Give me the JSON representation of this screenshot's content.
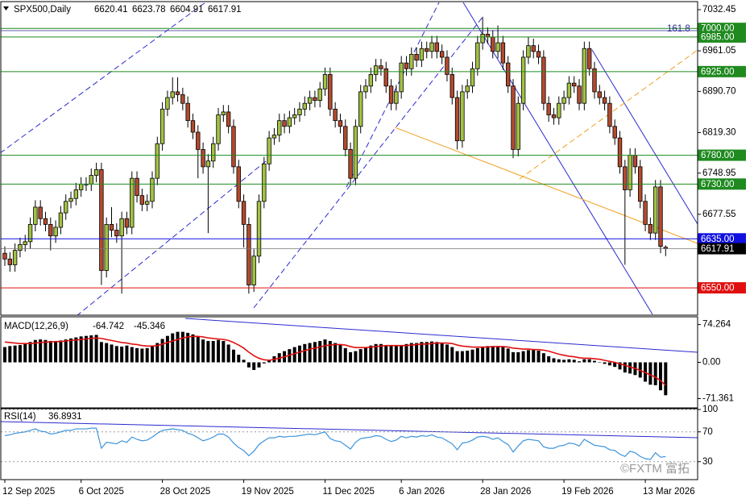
{
  "chart_data": [
    {
      "type": "candlestick",
      "title": "SPX500,Daily",
      "annotation": "161.8",
      "up_color": "#a2c244",
      "down_color": "#b34a2e",
      "ylim": [
        6504,
        7045
      ],
      "yticks": [
        7032.45,
        6961.05,
        {
          "value": 6890.7,
          "label": "6890.70"
        },
        {
          "value": 6819.3,
          "label": "6819.30"
        },
        6748.95,
        6677.55
      ],
      "levels": [
        {
          "value": 7000,
          "label": "7000.00",
          "color": "#1f8a1f"
        },
        {
          "value": 6985,
          "label": "6985.00",
          "color": "#1f8a1f"
        },
        {
          "value": 6925,
          "label": "6925.00",
          "color": "#1f8a1f"
        },
        {
          "value": 6780,
          "label": "6780.00",
          "color": "#1f8a1f"
        },
        {
          "value": 6730,
          "label": "6730.00",
          "color": "#1f8a1f"
        },
        {
          "value": 6635,
          "label": "6635.00",
          "color": "#1010e0"
        },
        {
          "value": 6550,
          "label": "6550.00",
          "color": "#e01010"
        }
      ],
      "categories": [
        "12 Sep 2025",
        null,
        null,
        null,
        null,
        null,
        null,
        null,
        null,
        null,
        null,
        null,
        null,
        null,
        null,
        "6 Oct 2025",
        null,
        null,
        null,
        null,
        null,
        null,
        null,
        null,
        null,
        null,
        null,
        null,
        null,
        null,
        null,
        "28 Oct 2025",
        null,
        null,
        null,
        null,
        null,
        null,
        null,
        null,
        null,
        null,
        null,
        null,
        null,
        null,
        null,
        "19 Nov 2025",
        null,
        null,
        null,
        null,
        null,
        null,
        null,
        null,
        null,
        null,
        null,
        null,
        null,
        null,
        null,
        "11 Dec 2025",
        null,
        null,
        null,
        null,
        null,
        null,
        null,
        null,
        null,
        null,
        null,
        null,
        null,
        null,
        "6 Jan 2026",
        null,
        null,
        null,
        null,
        null,
        null,
        null,
        null,
        null,
        null,
        null,
        null,
        null,
        null,
        null,
        "28 Jan 2026",
        null,
        null,
        null,
        null,
        null,
        null,
        null,
        null,
        null,
        null,
        null,
        null,
        null,
        null,
        null,
        "19 Feb 2026",
        null,
        null,
        null,
        null,
        null,
        null,
        null,
        null,
        null,
        null,
        null,
        null,
        null,
        null,
        null,
        "13 Mar 2026",
        null,
        null,
        null,
        null
      ],
      "open": [
        6610,
        6600,
        6590,
        6615,
        6625,
        6630,
        6660,
        6690,
        6670,
        6660,
        6640,
        6655,
        6680,
        6700,
        6705,
        6720,
        6730,
        6730,
        6745,
        6755,
        6580,
        6660,
        6650,
        6640,
        6670,
        6655,
        6740,
        6710,
        6695,
        6700,
        6740,
        6800,
        6860,
        6880,
        6890,
        6885,
        6870,
        6840,
        6820,
        6790,
        6760,
        6770,
        6800,
        6850,
        6855,
        6830,
        6760,
        6700,
        6660,
        6555,
        6605,
        6700,
        6765,
        6810,
        6815,
        6840,
        6830,
        6845,
        6850,
        6860,
        6870,
        6880,
        6875,
        6895,
        6920,
        6860,
        6840,
        6830,
        6790,
        6740,
        6830,
        6890,
        6900,
        6920,
        6935,
        6930,
        6900,
        6870,
        6890,
        6940,
        6930,
        6955,
        6945,
        6965,
        6960,
        6975,
        6960,
        6950,
        6920,
        6880,
        6805,
        6890,
        6900,
        6930,
        6975,
        6990,
        6985,
        6960,
        6975,
        6940,
        6900,
        6790,
        6870,
        6950,
        6970,
        6960,
        6950,
        6870,
        6850,
        6845,
        6870,
        6880,
        6905,
        6900,
        6870,
        6965,
        6930,
        6890,
        6880,
        6870,
        6830,
        6810,
        6760,
        6720,
        6780,
        6760,
        6700,
        6660,
        6645,
        6725,
        6620.41
      ],
      "high": [
        6622,
        6612,
        6627,
        6637,
        6642,
        6672,
        6702,
        6702,
        6682,
        6672,
        6667,
        6692,
        6712,
        6717,
        6732,
        6742,
        6742,
        6757,
        6767,
        6767,
        6672,
        6690,
        6662,
        6682,
        6682,
        6752,
        6752,
        6722,
        6712,
        6752,
        6812,
        6872,
        6892,
        6915,
        6915,
        6897,
        6882,
        6852,
        6832,
        6802,
        6782,
        6812,
        6862,
        6867,
        6867,
        6842,
        6772,
        6712,
        6672,
        6617,
        6712,
        6777,
        6822,
        6827,
        6852,
        6852,
        6857,
        6862,
        6872,
        6882,
        6892,
        6892,
        6907,
        6932,
        6932,
        6872,
        6852,
        6842,
        6802,
        6842,
        6902,
        6912,
        6932,
        6947,
        6947,
        6942,
        6912,
        6902,
        6952,
        6952,
        6967,
        6967,
        6977,
        6977,
        6987,
        6987,
        6972,
        6962,
        6932,
        6892,
        6902,
        6912,
        6942,
        6987,
        7020,
        7002,
        6997,
        7005,
        6987,
        6952,
        6912,
        6882,
        6962,
        6985,
        6982,
        6972,
        6962,
        6882,
        6862,
        6882,
        6892,
        6917,
        6917,
        6912,
        6977,
        6977,
        6942,
        6902,
        6892,
        6882,
        6842,
        6822,
        6772,
        6792,
        6792,
        6772,
        6712,
        6672,
        6737,
        6737,
        6623.78
      ],
      "low": [
        6588,
        6578,
        6578,
        6603,
        6613,
        6618,
        6648,
        6658,
        6648,
        6615,
        6628,
        6643,
        6668,
        6688,
        6693,
        6708,
        6718,
        6718,
        6733,
        6555,
        6568,
        6638,
        6628,
        6540,
        6643,
        6643,
        6698,
        6683,
        6683,
        6688,
        6728,
        6788,
        6848,
        6868,
        6873,
        6858,
        6828,
        6808,
        6740,
        6748,
        6645,
        6758,
        6788,
        6838,
        6818,
        6748,
        6688,
        6620,
        6540,
        6543,
        6593,
        6688,
        6753,
        6798,
        6803,
        6818,
        6818,
        6833,
        6838,
        6848,
        6858,
        6863,
        6863,
        6883,
        6848,
        6828,
        6818,
        6778,
        6728,
        6728,
        6818,
        6878,
        6888,
        6908,
        6918,
        6888,
        6858,
        6858,
        6878,
        6918,
        6918,
        6933,
        6933,
        6948,
        6948,
        6948,
        6938,
        6908,
        6868,
        6790,
        6793,
        6878,
        6888,
        6918,
        6963,
        6973,
        6948,
        6948,
        6928,
        6888,
        6775,
        6778,
        6858,
        6938,
        6948,
        6938,
        6858,
        6838,
        6833,
        6833,
        6858,
        6868,
        6888,
        6858,
        6858,
        6918,
        6878,
        6868,
        6858,
        6818,
        6798,
        6748,
        6590,
        6708,
        6748,
        6688,
        6648,
        6633,
        6633,
        6610,
        6604.91
      ],
      "close": [
        6600,
        6590,
        6615,
        6625,
        6630,
        6660,
        6690,
        6670,
        6660,
        6640,
        6655,
        6680,
        6700,
        6705,
        6720,
        6730,
        6730,
        6745,
        6755,
        6580,
        6660,
        6650,
        6640,
        6670,
        6655,
        6740,
        6710,
        6695,
        6700,
        6740,
        6800,
        6860,
        6880,
        6890,
        6885,
        6870,
        6840,
        6820,
        6790,
        6760,
        6770,
        6800,
        6850,
        6855,
        6830,
        6760,
        6700,
        6660,
        6555,
        6605,
        6700,
        6765,
        6810,
        6815,
        6840,
        6830,
        6845,
        6850,
        6860,
        6870,
        6880,
        6875,
        6895,
        6920,
        6860,
        6840,
        6830,
        6790,
        6740,
        6830,
        6890,
        6900,
        6920,
        6935,
        6930,
        6900,
        6870,
        6890,
        6940,
        6930,
        6955,
        6945,
        6965,
        6960,
        6975,
        6960,
        6950,
        6920,
        6880,
        6805,
        6890,
        6900,
        6930,
        6975,
        6990,
        6985,
        6960,
        6975,
        6940,
        6900,
        6790,
        6870,
        6950,
        6970,
        6960,
        6950,
        6870,
        6850,
        6845,
        6870,
        6880,
        6905,
        6900,
        6870,
        6965,
        6930,
        6890,
        6880,
        6870,
        6830,
        6810,
        6760,
        6720,
        6780,
        6760,
        6700,
        6660,
        6645,
        6725,
        6622,
        6617.91
      ]
    },
    {
      "type": "macd",
      "title": "MACD(12,26,9)",
      "ylim": [
        -88,
        88
      ],
      "yticks": [
        74.264,
        {
          "value": 0,
          "label": "0.00"
        },
        -71.361
      ],
      "histogram": {
        "color": "#000000",
        "values": [
          30,
          32,
          33,
          34,
          36,
          40,
          44,
          45,
          44,
          42,
          42,
          43,
          45,
          47,
          49,
          51,
          52,
          53,
          54,
          40,
          38,
          35,
          32,
          31,
          33,
          30,
          28,
          27,
          28,
          32,
          38,
          46,
          52,
          57,
          60,
          60,
          58,
          55,
          50,
          45,
          42,
          42,
          44,
          42,
          35,
          25,
          15,
          5,
          -10,
          -15,
          -10,
          -2,
          5,
          12,
          18,
          22,
          26,
          30,
          33,
          36,
          38,
          40,
          42,
          45,
          42,
          38,
          34,
          28,
          20,
          22,
          26,
          30,
          33,
          36,
          36,
          34,
          32,
          32,
          34,
          36,
          38,
          38,
          40,
          40,
          41,
          40,
          38,
          35,
          30,
          22,
          22,
          23,
          25,
          28,
          31,
          32,
          32,
          32,
          30,
          27,
          20,
          20,
          22,
          24,
          24,
          23,
          18,
          12,
          8,
          6,
          5,
          6,
          5,
          2,
          6,
          6,
          3,
          0,
          -3,
          -6,
          -9,
          -14,
          -20,
          -22,
          -25,
          -30,
          -38,
          -44,
          -45,
          -55,
          -64.742
        ]
      },
      "signal": {
        "color": "#e01010",
        "values": [
          40,
          39,
          38,
          37,
          37,
          37,
          38,
          39,
          40,
          40,
          41,
          41,
          42,
          43,
          44,
          45,
          46,
          47,
          48,
          47,
          45,
          43,
          41,
          39,
          38,
          36,
          35,
          33,
          32,
          32,
          33,
          36,
          39,
          42,
          45,
          48,
          50,
          51,
          51,
          50,
          48,
          47,
          46,
          45,
          43,
          39,
          34,
          28,
          20,
          13,
          8,
          5,
          4,
          6,
          8,
          11,
          14,
          17,
          20,
          23,
          26,
          28,
          30,
          33,
          34,
          35,
          35,
          34,
          31,
          29,
          29,
          29,
          30,
          31,
          32,
          33,
          33,
          33,
          33,
          33,
          34,
          35,
          36,
          36,
          37,
          38,
          38,
          38,
          37,
          34,
          32,
          31,
          30,
          30,
          30,
          30,
          31,
          31,
          31,
          30,
          28,
          27,
          26,
          26,
          25,
          25,
          24,
          22,
          19,
          16,
          14,
          12,
          11,
          9,
          8,
          8,
          7,
          6,
          4,
          2,
          0,
          -3,
          -6,
          -9,
          -12,
          -16,
          -20,
          -25,
          -29,
          -36,
          -45.346
        ]
      }
    },
    {
      "type": "line",
      "title": "RSI(14)",
      "color": "#3d94dc",
      "grid": true,
      "ylim": [
        7,
        100
      ],
      "yticks": [
        100,
        70,
        30
      ],
      "values": [
        65,
        66,
        68,
        69,
        70,
        72,
        74,
        71,
        70,
        67,
        68,
        70,
        72,
        72,
        74,
        74,
        74,
        75,
        75,
        48,
        56,
        55,
        54,
        58,
        56,
        63,
        60,
        58,
        59,
        63,
        68,
        72,
        73,
        74,
        73,
        72,
        68,
        66,
        62,
        58,
        60,
        63,
        67,
        67,
        63,
        55,
        49,
        45,
        38,
        44,
        53,
        58,
        62,
        62,
        64,
        63,
        64,
        64,
        65,
        66,
        67,
        66,
        68,
        70,
        61,
        58,
        57,
        52,
        47,
        56,
        61,
        62,
        63,
        65,
        64,
        60,
        57,
        59,
        64,
        62,
        64,
        63,
        65,
        64,
        66,
        63,
        62,
        58,
        54,
        46,
        55,
        56,
        59,
        63,
        64,
        63,
        60,
        62,
        57,
        53,
        43,
        51,
        58,
        60,
        59,
        58,
        50,
        48,
        48,
        51,
        52,
        55,
        54,
        51,
        60,
        56,
        52,
        51,
        50,
        46,
        45,
        40,
        37,
        44,
        42,
        37,
        34,
        33,
        42,
        36,
        36.8931
      ]
    }
  ],
  "watermark": "©FXTM 富拓"
}
